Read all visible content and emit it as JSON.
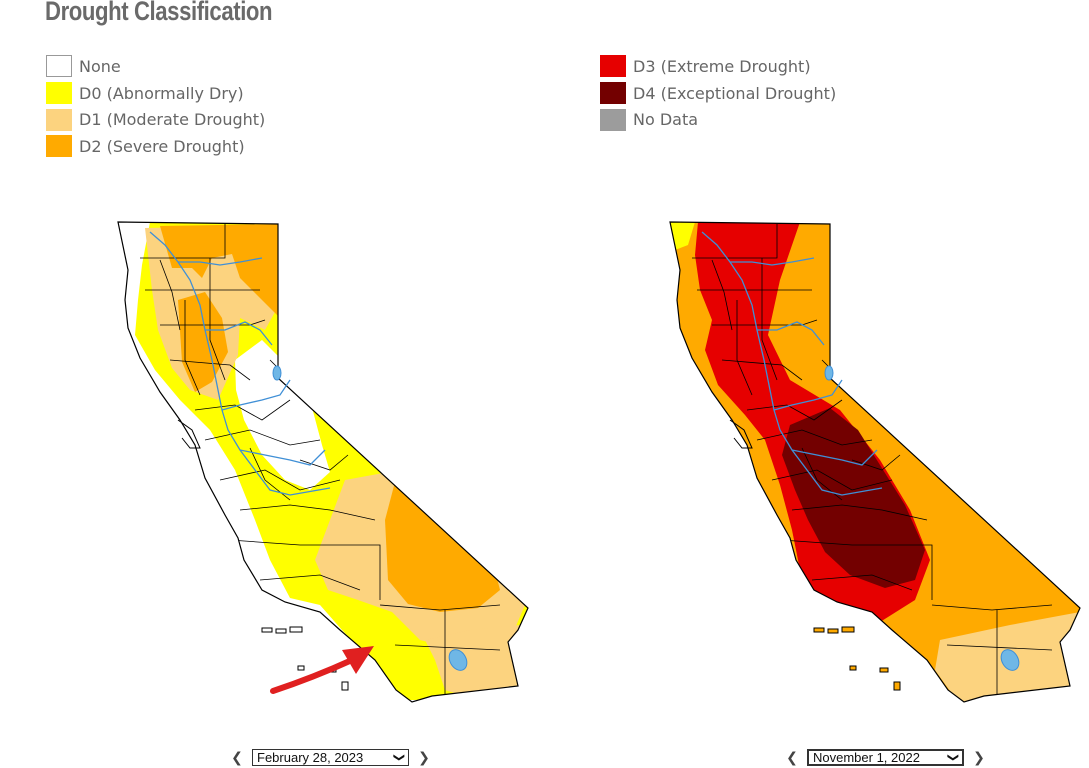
{
  "title": "Drought Classification",
  "legend_left": [
    {
      "label": "None",
      "color": "#ffffff",
      "icon": "none-swatch"
    },
    {
      "label": "D0 (Abnormally Dry)",
      "color": "#ffff00",
      "icon": "d0-swatch"
    },
    {
      "label": "D1 (Moderate Drought)",
      "color": "#fcd37f",
      "icon": "d1-swatch"
    },
    {
      "label": "D2 (Severe Drought)",
      "color": "#ffaa00",
      "icon": "d2-swatch"
    }
  ],
  "legend_right": [
    {
      "label": "D3 (Extreme Drought)",
      "color": "#e60000",
      "icon": "d3-swatch"
    },
    {
      "label": "D4 (Exceptional Drought)",
      "color": "#730000",
      "icon": "d4-swatch"
    },
    {
      "label": "No Data",
      "color": "#9c9c9c",
      "icon": "no-data-swatch"
    }
  ],
  "map_left": {
    "date": "February 28, 2023",
    "annotation": "red-arrow-icon"
  },
  "map_right": {
    "date": "November 1, 2022"
  },
  "controls": {
    "prev_icon": "chevron-left-icon",
    "next_icon": "chevron-right-icon",
    "dropdown_icon": "chevron-down-icon"
  },
  "colors": {
    "water": "#6fb7e6",
    "rivers": "#3f8fd6",
    "border": "#000000",
    "annotation": "#e02020"
  }
}
